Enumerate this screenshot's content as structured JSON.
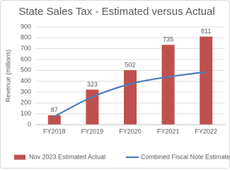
{
  "chart_data": {
    "type": "combo",
    "title": "State Sales Tax - Estimated versus Actual",
    "y_label": "Revenue (millions)",
    "categories": [
      "FY2018",
      "FY2019",
      "FY2020",
      "FY2021",
      "FY2022"
    ],
    "series": [
      {
        "name": "Nov 2023 Estimated Actual",
        "type": "bar",
        "color": "#c0504d",
        "values": [
          87,
          323,
          502,
          735,
          811
        ]
      },
      {
        "name": "Combined Fiscal Note Estimates",
        "type": "line",
        "color": "#4a7ebb",
        "values": [
          75,
          255,
          375,
          440,
          485
        ]
      }
    ],
    "ylim": [
      0,
      900
    ],
    "yticks": [
      0,
      100,
      200,
      300,
      400,
      500,
      600,
      700,
      800,
      900
    ],
    "grid": true
  }
}
